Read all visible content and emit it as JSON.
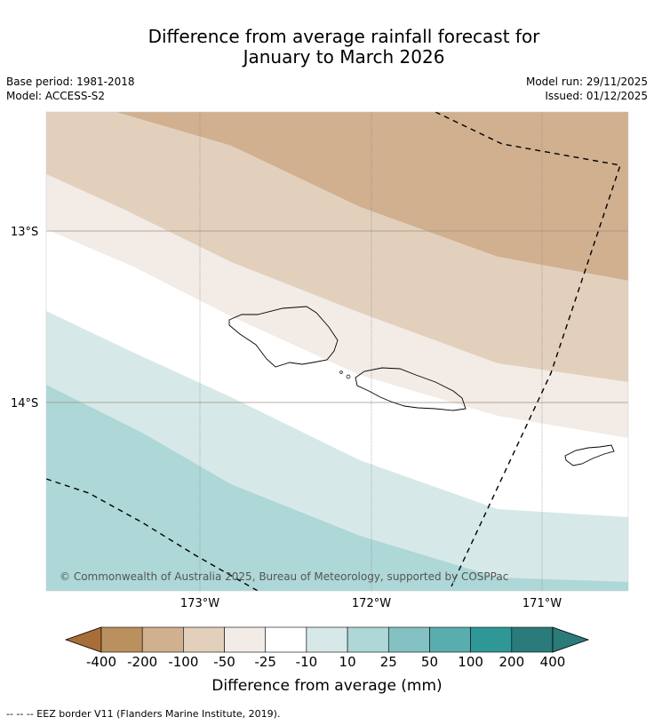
{
  "title_line1": "Difference from average rainfall forecast for",
  "title_line2": "January to March 2026",
  "base_period": "Base period: 1981-2018",
  "model": "Model: ACCESS-S2",
  "model_run": "Model run: 29/11/2025",
  "issued": "Issued: 01/12/2025",
  "lat_labels": [
    "13°S",
    "14°S"
  ],
  "lon_labels": [
    "173°W",
    "172°W",
    "171°W"
  ],
  "copyright": "© Commonwealth of Australia 2025, Bureau of Meteorology, supported by COSPPac",
  "colorbar": {
    "title": "Difference from average (mm)",
    "ticks": [
      "-400",
      "-200",
      "-100",
      "-50",
      "-25",
      "-10",
      "10",
      "25",
      "50",
      "100",
      "200",
      "400"
    ],
    "colors": [
      "#a86e38",
      "#b9905e",
      "#d0b08f",
      "#e2d0bd",
      "#f3ebe5",
      "#ffffff",
      "#d6e9e8",
      "#aed7d7",
      "#84c1c2",
      "#59adae",
      "#2f9896",
      "#2a7b7a"
    ]
  },
  "footer": "--  --  -- EEZ border V11 (Flanders Marine Institute, 2019)."
}
